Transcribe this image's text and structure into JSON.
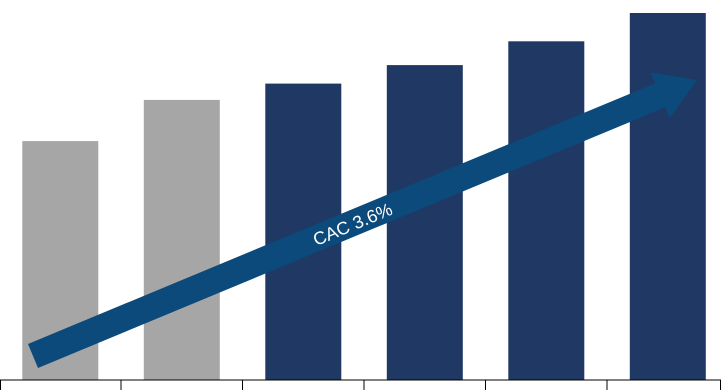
{
  "chart_data": {
    "type": "bar",
    "title": "",
    "xlabel": "",
    "ylabel": "",
    "ylim": [
      0,
      350
    ],
    "grid": false,
    "legend": "none",
    "categories": [
      "",
      "",
      "",
      "",
      "",
      ""
    ],
    "values": [
      220,
      258,
      273,
      290,
      312,
      338
    ],
    "bar_colors": [
      "#a6a6a6",
      "#a6a6a6",
      "#1f3864",
      "#1f3864",
      "#1f3864",
      "#1f3864"
    ],
    "trend_arrow": {
      "label": "CAC 3.6%",
      "color": "#0b4a7a"
    }
  }
}
